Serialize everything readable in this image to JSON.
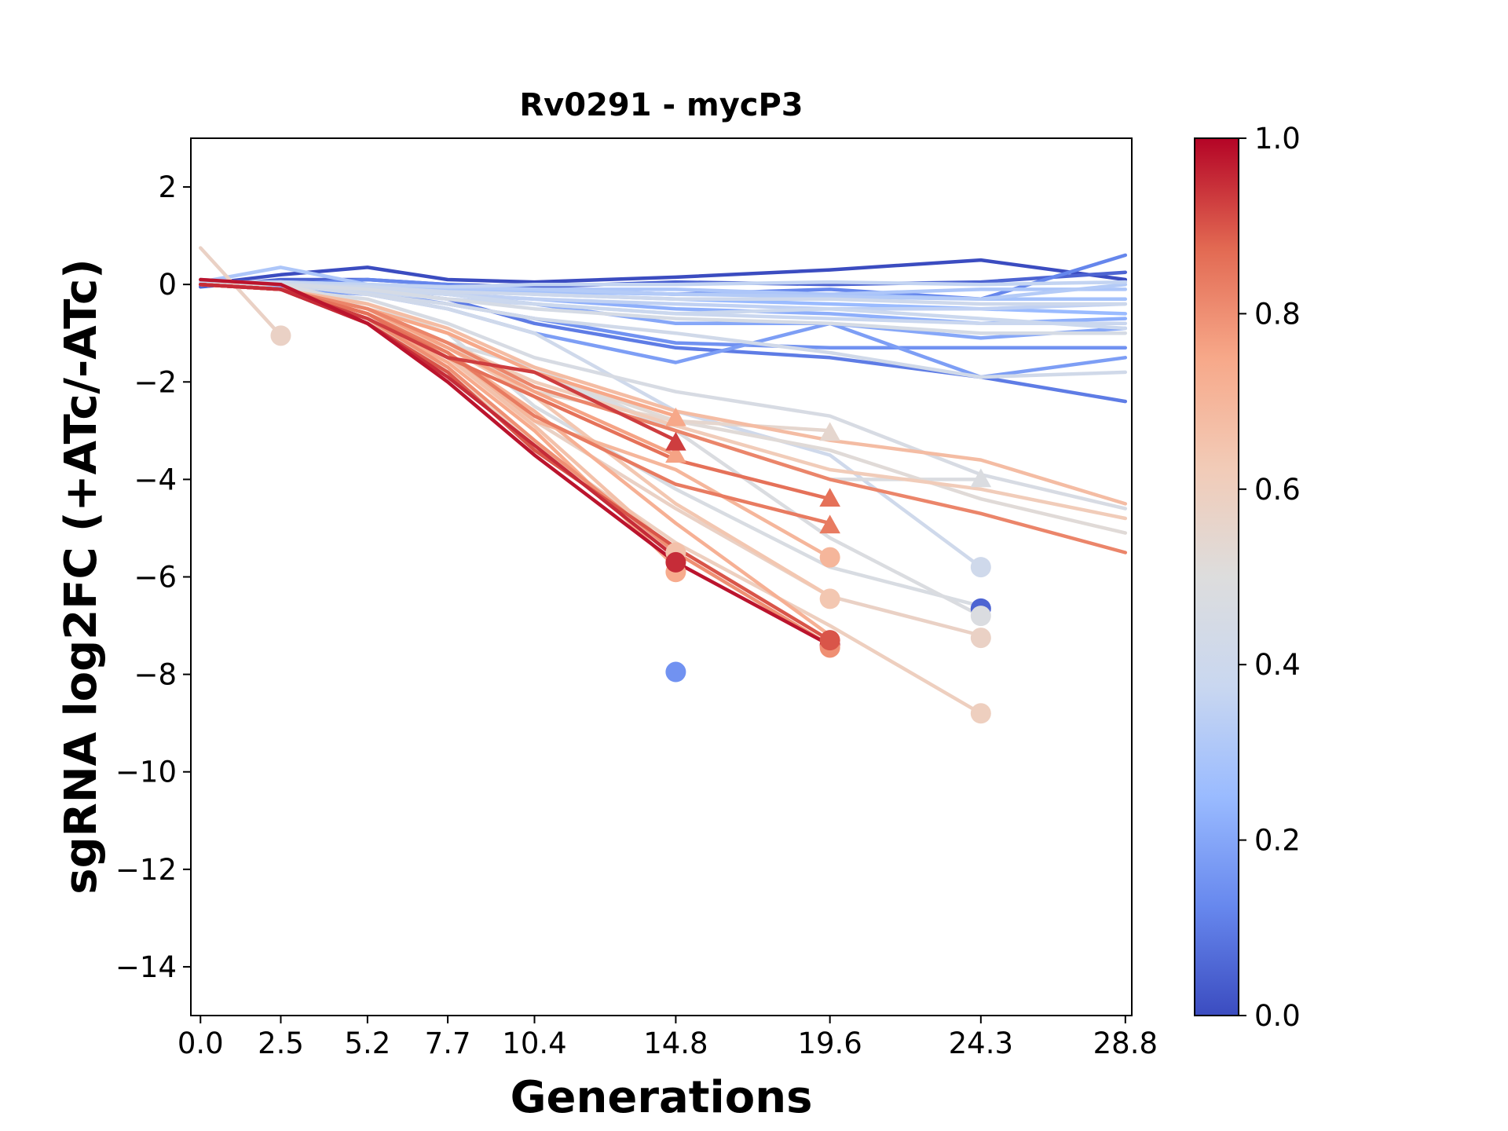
{
  "chart_data": {
    "type": "line",
    "title": "Rv0291 - mycP3",
    "xlabel": "Generations",
    "ylabel": "sgRNA log2FC (+ATc/-ATc)",
    "xlim": [
      -0.3,
      29.0
    ],
    "ylim": [
      -15,
      3
    ],
    "x_ticks": [
      0.0,
      2.5,
      5.2,
      7.7,
      10.4,
      14.8,
      19.6,
      24.3,
      28.8
    ],
    "x_tick_labels": [
      "0.0",
      "2.5",
      "5.2",
      "7.7",
      "10.4",
      "14.8",
      "19.6",
      "24.3",
      "28.8"
    ],
    "y_ticks": [
      2,
      0,
      -2,
      -4,
      -6,
      -8,
      -10,
      -12,
      -14
    ],
    "y_tick_labels": [
      "2",
      "0",
      "−2",
      "−4",
      "−6",
      "−8",
      "−10",
      "−12",
      "−14"
    ],
    "grid": false,
    "colorbar": {
      "colormap": "coolwarm",
      "range": [
        0.0,
        1.0
      ],
      "ticks": [
        0.0,
        0.2,
        0.4,
        0.6,
        0.8,
        1.0
      ],
      "tick_labels": [
        "0.0",
        "0.2",
        "0.4",
        "0.6",
        "0.8",
        "1.0"
      ],
      "stops": [
        "#3b4cc0",
        "#6788ee",
        "#9abbff",
        "#c9d7f0",
        "#dddddd",
        "#f2cbb7",
        "#f7a889",
        "#e26952",
        "#b40426"
      ]
    },
    "series": [
      {
        "c": 0.0,
        "x": [
          0,
          2.5,
          5.2,
          7.7,
          10.4,
          14.8,
          19.6,
          24.3,
          28.8
        ],
        "y": [
          0.0,
          0.2,
          0.35,
          0.1,
          0.05,
          0.15,
          0.3,
          0.5,
          0.1
        ]
      },
      {
        "c": 0.05,
        "x": [
          0,
          2.5,
          5.2,
          7.7,
          10.4,
          14.8,
          19.6,
          24.3,
          28.8
        ],
        "y": [
          -0.05,
          0.1,
          0.1,
          0.0,
          -0.05,
          0.05,
          0.0,
          0.05,
          0.25
        ]
      },
      {
        "c": 0.1,
        "x": [
          0,
          2.5,
          5.2,
          7.7,
          10.4,
          14.8,
          19.6,
          24.3,
          28.8
        ],
        "y": [
          0.0,
          0.0,
          -0.1,
          -0.3,
          -0.8,
          -1.3,
          -1.5,
          -1.9,
          -2.4
        ]
      },
      {
        "c": 0.12,
        "x": [
          0,
          2.5,
          5.2,
          7.7,
          10.4,
          14.8,
          19.6,
          24.3,
          28.8
        ],
        "y": [
          0.05,
          0.0,
          0.1,
          0.0,
          -0.1,
          -0.2,
          -0.1,
          -0.3,
          0.6
        ]
      },
      {
        "c": 0.15,
        "x": [
          0,
          2.5,
          5.2,
          7.7,
          10.4,
          14.8,
          19.6,
          24.3,
          28.8
        ],
        "y": [
          0.0,
          -0.05,
          -0.15,
          -0.4,
          -0.7,
          -1.2,
          -1.3,
          -1.3,
          -1.3
        ]
      },
      {
        "c": 0.18,
        "x": [
          0,
          2.5,
          5.2,
          7.7,
          10.4,
          14.8,
          19.6,
          24.3,
          28.8
        ],
        "y": [
          0.0,
          -0.1,
          -0.2,
          -0.5,
          -1.0,
          -1.6,
          -0.8,
          -1.9,
          -1.5
        ]
      },
      {
        "c": 0.2,
        "x": [
          0,
          2.5,
          5.2,
          7.7,
          10.4,
          14.8,
          19.6,
          24.3,
          28.8
        ],
        "y": [
          0.0,
          -0.05,
          -0.1,
          -0.2,
          -0.4,
          -0.8,
          -0.8,
          -1.1,
          -0.9
        ]
      },
      {
        "c": 0.22,
        "x": [
          0,
          2.5,
          5.2,
          7.7,
          10.4,
          14.8,
          19.6,
          24.3,
          28.8
        ],
        "y": [
          0.1,
          0.0,
          -0.1,
          -0.2,
          -0.3,
          -0.5,
          -0.6,
          -0.8,
          -0.7
        ]
      },
      {
        "c": 0.25,
        "x": [
          0,
          2.5,
          5.2,
          7.7,
          10.4,
          14.8,
          19.6,
          24.3,
          28.8
        ],
        "y": [
          0.0,
          0.05,
          0.0,
          -0.1,
          -0.2,
          -0.3,
          -0.4,
          -0.5,
          -0.6
        ]
      },
      {
        "c": 0.28,
        "x": [
          0,
          2.5,
          5.2,
          7.7,
          10.4,
          14.8,
          19.6,
          24.3,
          28.8
        ],
        "y": [
          0.0,
          0.0,
          -0.05,
          -0.1,
          -0.15,
          -0.2,
          -0.2,
          -0.3,
          -0.3
        ]
      },
      {
        "c": 0.3,
        "x": [
          0,
          2.5,
          5.2,
          7.7,
          10.4,
          14.8,
          19.6,
          24.3,
          28.8
        ],
        "y": [
          0.05,
          0.35,
          0.0,
          -0.1,
          -0.1,
          -0.1,
          -0.2,
          -0.1,
          -0.1
        ]
      },
      {
        "c": 0.32,
        "x": [
          0,
          2.5,
          5.2,
          7.7,
          10.4,
          14.8,
          19.6,
          24.3,
          28.8
        ],
        "y": [
          0.0,
          0.0,
          0.0,
          -0.05,
          -0.1,
          -0.2,
          -0.25,
          -0.3,
          0.0
        ]
      },
      {
        "c": 0.35,
        "x": [
          0,
          2.5,
          5.2,
          7.7,
          10.4,
          14.8,
          19.6,
          24.3,
          28.8
        ],
        "y": [
          0.0,
          0.0,
          -0.1,
          -0.2,
          -0.3,
          -0.4,
          -0.5,
          -0.5,
          -0.4
        ]
      },
      {
        "c": 0.36,
        "x": [
          0,
          2.5,
          5.2,
          7.7,
          10.4,
          14.8,
          19.6,
          24.3,
          28.8
        ],
        "y": [
          0.05,
          0.05,
          0.0,
          -0.05,
          0.0,
          0.0,
          0.05,
          0.0,
          0.05
        ]
      },
      {
        "c": 0.38,
        "x": [
          0,
          2.5,
          5.2,
          7.7,
          10.4,
          14.8,
          19.6,
          24.3,
          28.8
        ],
        "y": [
          0.0,
          0.0,
          -0.15,
          -0.3,
          -0.4,
          -0.6,
          -0.7,
          -0.8,
          -0.8
        ]
      },
      {
        "c": 0.39,
        "x": [
          0,
          2.5,
          5.2,
          7.7,
          10.4,
          14.8,
          19.6,
          24.3,
          28.8
        ],
        "y": [
          0.0,
          0.05,
          -0.1,
          -0.2,
          -0.4,
          -0.6,
          -0.5,
          -0.7,
          -0.9
        ]
      },
      {
        "c": 0.4,
        "x": [
          0,
          2.5,
          5.2,
          7.7,
          10.4,
          14.8,
          19.6,
          24.3,
          28.8
        ],
        "y": [
          0.0,
          0.0,
          -0.05,
          -0.15,
          -0.2,
          -0.3,
          -0.3,
          -0.4,
          -0.4
        ]
      },
      {
        "c": 0.41,
        "x": [
          0,
          2.5,
          5.2,
          7.7,
          10.4,
          14.8,
          19.6,
          24.3
        ],
        "y": [
          0.0,
          0.0,
          -0.2,
          -0.5,
          -1.0,
          -2.6,
          -3.5,
          -5.8
        ]
      },
      {
        "c": 0.42,
        "x": [
          0,
          2.5,
          5.2,
          7.7,
          10.4,
          14.8,
          19.6,
          24.3,
          28.8
        ],
        "y": [
          0.0,
          0.0,
          -0.2,
          -0.4,
          -0.7,
          -1.0,
          -1.4,
          -1.9,
          -1.8
        ]
      },
      {
        "c": 0.45,
        "x": [
          0,
          2.5,
          5.2,
          7.7,
          10.4,
          14.8,
          19.6,
          24.3,
          28.8
        ],
        "y": [
          0.0,
          0.0,
          -0.1,
          -0.3,
          -0.5,
          -0.7,
          -0.8,
          -1.0,
          -1.0
        ]
      },
      {
        "c": 0.46,
        "x": [
          0,
          2.5,
          5.2,
          7.7,
          10.4,
          14.8,
          19.6,
          24.3,
          28.8
        ],
        "y": [
          0.0,
          -0.1,
          -0.3,
          -0.8,
          -1.5,
          -2.2,
          -2.7,
          -3.9,
          -4.6
        ]
      },
      {
        "c": 0.47,
        "x": [
          0,
          2.5,
          5.2,
          7.7,
          10.4,
          14.8,
          19.6,
          24.3
        ],
        "y": [
          0.0,
          -0.1,
          -0.5,
          -1.0,
          -2.5,
          -4.2,
          -5.8,
          -6.6
        ]
      },
      {
        "c": 0.48,
        "x": [
          0,
          2.5,
          5.2,
          7.7,
          10.4,
          14.8,
          19.6,
          24.3
        ],
        "y": [
          0.0,
          0.0,
          -0.4,
          -1.0,
          -1.8,
          -3.0,
          -4.0,
          -4.0
        ]
      },
      {
        "c": 0.48,
        "x": [
          0,
          2.5,
          5.2,
          7.7,
          10.4,
          14.8,
          19.6,
          24.3
        ],
        "y": [
          0.0,
          0.0,
          -0.5,
          -1.2,
          -1.7,
          -3.0,
          -5.2,
          -6.8
        ]
      },
      {
        "c": 0.52,
        "x": [
          0,
          2.5,
          5.2,
          7.7,
          10.4,
          14.8,
          19.6,
          24.3,
          28.8
        ],
        "y": [
          0.0,
          -0.1,
          -0.4,
          -1.0,
          -1.8,
          -2.8,
          -3.4,
          -4.4,
          -5.1
        ]
      },
      {
        "c": 0.55,
        "x": [
          0,
          2.5,
          5.2,
          7.7,
          10.4,
          14.8,
          19.6
        ],
        "y": [
          0.0,
          -0.1,
          -0.5,
          -1.2,
          -2.2,
          -2.8,
          -3.0
        ]
      },
      {
        "c": 0.58,
        "x": [
          0,
          2.5
        ],
        "y": [
          0.75,
          -1.05
        ]
      },
      {
        "c": 0.58,
        "x": [
          0,
          2.5,
          5.2,
          7.7,
          10.4,
          14.8,
          19.6,
          24.3
        ],
        "y": [
          0.0,
          -0.1,
          -0.6,
          -1.5,
          -2.8,
          -4.6,
          -6.4,
          -7.2
        ]
      },
      {
        "c": 0.6,
        "x": [
          0,
          2.5,
          5.2,
          7.7,
          10.4,
          14.8,
          19.6,
          24.3
        ],
        "y": [
          0.0,
          -0.1,
          -0.7,
          -1.8,
          -3.3,
          -5.3,
          -7.0,
          -8.8
        ]
      },
      {
        "c": 0.62,
        "x": [
          0,
          2.5,
          5.2,
          7.7,
          10.4,
          14.8,
          19.6,
          24.3,
          28.8
        ],
        "y": [
          0.0,
          -0.1,
          -0.5,
          -1.2,
          -2.0,
          -2.9,
          -3.8,
          -4.2,
          -4.8
        ]
      },
      {
        "c": 0.64,
        "x": [
          0,
          2.5,
          5.2,
          7.7,
          10.4,
          14.8,
          19.6
        ],
        "y": [
          0.0,
          -0.1,
          -0.6,
          -1.3,
          -2.3,
          -4.5,
          -6.4
        ]
      },
      {
        "c": 0.66,
        "x": [
          0,
          2.5,
          5.2,
          7.7,
          10.4,
          14.8
        ],
        "y": [
          0.0,
          -0.1,
          -0.6,
          -1.5,
          -2.9,
          -5.5
        ]
      },
      {
        "c": 0.68,
        "x": [
          0,
          2.5,
          5.2,
          7.7,
          10.4,
          14.8,
          19.6,
          24.3,
          28.8
        ],
        "y": [
          0.0,
          -0.1,
          -0.4,
          -0.9,
          -1.7,
          -2.6,
          -3.2,
          -3.6,
          -4.5
        ]
      },
      {
        "c": 0.7,
        "x": [
          0,
          2.5,
          5.2,
          7.7,
          10.4,
          14.8,
          19.6
        ],
        "y": [
          0.0,
          -0.1,
          -0.6,
          -1.4,
          -2.8,
          -3.8,
          -5.6
        ]
      },
      {
        "c": 0.72,
        "x": [
          0,
          2.5,
          5.2,
          7.7,
          10.4,
          14.8,
          19.6
        ],
        "y": [
          0.0,
          -0.1,
          -0.6,
          -1.4,
          -2.6,
          -4.9,
          -7.2
        ]
      },
      {
        "c": 0.74,
        "x": [
          0,
          2.5,
          5.2,
          7.7,
          10.4,
          14.8
        ],
        "y": [
          0.0,
          -0.1,
          -0.7,
          -1.6,
          -3.0,
          -5.8
        ]
      },
      {
        "c": 0.75,
        "x": [
          0,
          2.5,
          5.2,
          7.7,
          10.4,
          14.8
        ],
        "y": [
          0.0,
          -0.1,
          -0.5,
          -1.0,
          -1.8,
          -2.7
        ]
      },
      {
        "c": 0.76,
        "x": [
          0,
          2.5,
          5.2,
          7.7,
          10.4,
          14.8
        ],
        "y": [
          0.0,
          -0.1,
          -0.5,
          -1.3,
          -2.2,
          -3.5
        ]
      },
      {
        "c": 0.8,
        "x": [
          0,
          2.5,
          5.2,
          7.7,
          10.4,
          14.8,
          19.6
        ],
        "y": [
          0.0,
          -0.1,
          -0.7,
          -1.7,
          -3.2,
          -5.5,
          -7.4
        ]
      },
      {
        "c": 0.82,
        "x": [
          0,
          2.5,
          5.2,
          7.7,
          10.4,
          14.8,
          19.6,
          24.3,
          28.8
        ],
        "y": [
          0.0,
          -0.1,
          -0.5,
          -1.2,
          -2.1,
          -3.0,
          -4.0,
          -4.7,
          -5.5
        ]
      },
      {
        "c": 0.84,
        "x": [
          0,
          2.5,
          5.2,
          7.7,
          10.4,
          14.8,
          19.6
        ],
        "y": [
          0.0,
          -0.1,
          -0.6,
          -1.4,
          -2.7,
          -4.1,
          -4.9
        ]
      },
      {
        "c": 0.86,
        "x": [
          0,
          2.5,
          5.2,
          7.7,
          10.4,
          14.8,
          19.6
        ],
        "y": [
          0.0,
          -0.1,
          -0.6,
          -1.5,
          -2.3,
          -3.6,
          -4.4
        ]
      },
      {
        "c": 0.9,
        "x": [
          0,
          2.5,
          5.2,
          7.7,
          10.4,
          14.8,
          19.6
        ],
        "y": [
          0.0,
          -0.1,
          -0.8,
          -1.8,
          -3.4,
          -5.4,
          -7.3
        ]
      },
      {
        "c": 0.93,
        "x": [
          0,
          2.5,
          5.2,
          7.7,
          10.4,
          14.8
        ],
        "y": [
          0.0,
          -0.1,
          -0.7,
          -1.5,
          -1.8,
          -3.2
        ]
      },
      {
        "c": 0.95,
        "x": [
          0,
          2.5,
          5.2,
          7.7,
          10.4,
          14.8
        ],
        "y": [
          0.0,
          -0.1,
          -0.8,
          -1.9,
          -3.3,
          -5.6
        ]
      },
      {
        "c": 0.98,
        "x": [
          0,
          2.5,
          5.2,
          7.7,
          10.4,
          14.8,
          19.6
        ],
        "y": [
          0.1,
          0.0,
          -0.8,
          -2.0,
          -3.5,
          -5.7,
          -7.4
        ]
      }
    ],
    "end_markers": [
      {
        "c": 0.58,
        "shape": "circle",
        "x": 2.5,
        "y": -1.05
      },
      {
        "c": 0.15,
        "shape": "circle",
        "x": 14.8,
        "y": -7.95
      },
      {
        "c": 0.74,
        "shape": "circle",
        "x": 14.8,
        "y": -5.9
      },
      {
        "c": 0.66,
        "shape": "circle",
        "x": 14.8,
        "y": -5.5
      },
      {
        "c": 0.95,
        "shape": "circle",
        "x": 14.8,
        "y": -5.7
      },
      {
        "c": 0.75,
        "shape": "triangle",
        "x": 14.8,
        "y": -2.75
      },
      {
        "c": 0.76,
        "shape": "triangle",
        "x": 14.8,
        "y": -3.5
      },
      {
        "c": 0.93,
        "shape": "triangle",
        "x": 14.8,
        "y": -3.25
      },
      {
        "c": 0.98,
        "shape": "circle",
        "x": 19.6,
        "y": -7.4
      },
      {
        "c": 0.8,
        "shape": "circle",
        "x": 19.6,
        "y": -7.45
      },
      {
        "c": 0.9,
        "shape": "circle",
        "x": 19.6,
        "y": -7.3
      },
      {
        "c": 0.7,
        "shape": "circle",
        "x": 19.6,
        "y": -5.6
      },
      {
        "c": 0.64,
        "shape": "circle",
        "x": 19.6,
        "y": -6.45
      },
      {
        "c": 0.55,
        "shape": "triangle",
        "x": 19.6,
        "y": -3.05
      },
      {
        "c": 0.84,
        "shape": "triangle",
        "x": 19.6,
        "y": -4.95
      },
      {
        "c": 0.86,
        "shape": "triangle",
        "x": 19.6,
        "y": -4.4
      },
      {
        "c": 0.41,
        "shape": "circle",
        "x": 24.3,
        "y": -5.8
      },
      {
        "c": 0.05,
        "shape": "circle",
        "x": 24.3,
        "y": -6.65
      },
      {
        "c": 0.48,
        "shape": "circle",
        "x": 24.3,
        "y": -6.8
      },
      {
        "c": 0.58,
        "shape": "circle",
        "x": 24.3,
        "y": -7.25
      },
      {
        "c": 0.6,
        "shape": "circle",
        "x": 24.3,
        "y": -8.8
      },
      {
        "c": 0.48,
        "shape": "triangle",
        "x": 24.3,
        "y": -4.0
      }
    ]
  }
}
